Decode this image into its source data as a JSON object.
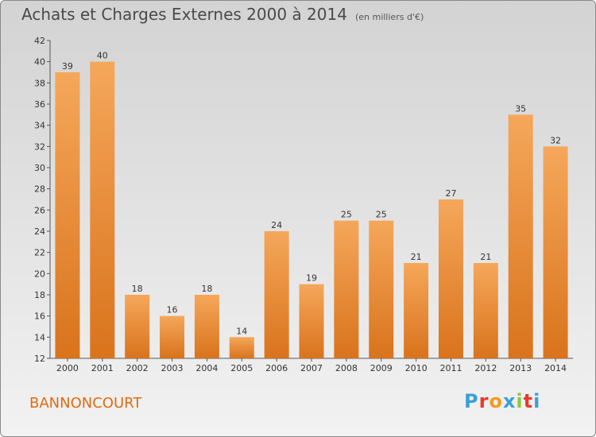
{
  "header": {
    "title": "Achats et Charges Externes 2000 à 2014",
    "subtitle": "(en milliers d'€)"
  },
  "footer": {
    "place": "BANNONCOURT",
    "logo_letters": [
      "P",
      "r",
      "o",
      "x",
      "i",
      "t",
      "i"
    ],
    "logo_colors": [
      "#3aa0d8",
      "#e83a2a",
      "#f39a1e",
      "#3aa0d8",
      "#8cc63f",
      "#e83a2a",
      "#3aa0d8"
    ]
  },
  "colors": {
    "bar_top": "#f5a75a",
    "bar_bottom": "#d9731c",
    "axis": "#555555",
    "grid": "#c8c8c8"
  },
  "chart_data": {
    "type": "bar",
    "title": "Achats et Charges Externes 2000 à 2014",
    "subtitle": "(en milliers d'€)",
    "categories": [
      "2000",
      "2001",
      "2002",
      "2003",
      "2004",
      "2005",
      "2006",
      "2007",
      "2008",
      "2009",
      "2010",
      "2011",
      "2012",
      "2013",
      "2014"
    ],
    "values": [
      39,
      40,
      18,
      16,
      18,
      14,
      24,
      19,
      25,
      25,
      21,
      27,
      21,
      35,
      32
    ],
    "ylim": [
      12,
      42
    ],
    "yticks": [
      12,
      14,
      16,
      18,
      20,
      22,
      24,
      26,
      28,
      30,
      32,
      34,
      36,
      38,
      40,
      42
    ],
    "grid": false,
    "legend": "none"
  }
}
